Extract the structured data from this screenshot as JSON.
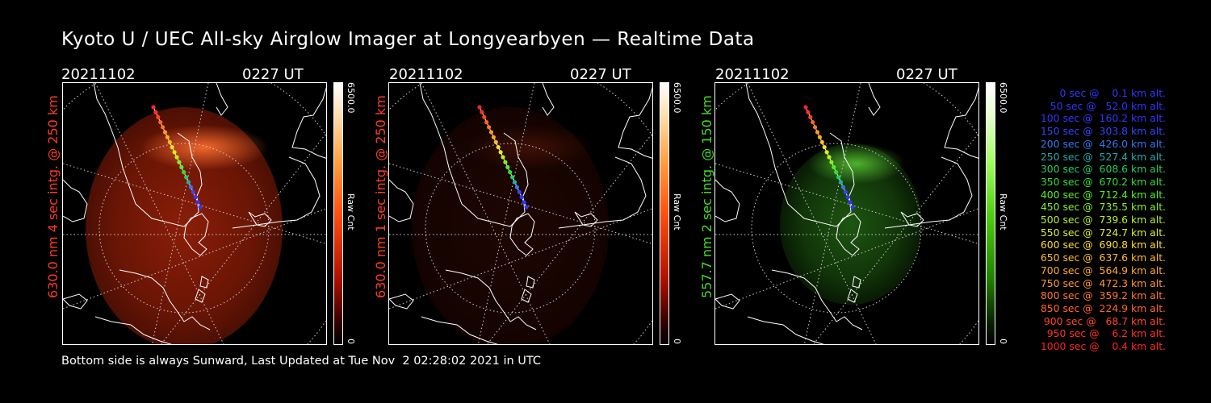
{
  "title": "Kyoto U / UEC All-sky Airglow Imager at Longyearbyen — Realtime Data",
  "footer": "Bottom side is always Sunward, Last Updated at Tue Nov  2 02:28:02 2021 in UTC",
  "colors": {
    "red": "#ff3b1e",
    "green": "#44dd22",
    "background": "#000000"
  },
  "panels": [
    {
      "date": "20211102",
      "time": "0227 UT",
      "side_label": "630.0 nm 4 sec intg. @ 250 km",
      "side_color": "#ff3b1e",
      "colorbar": {
        "max": "6500.0",
        "unit": "Raw Cnt",
        "min": "0",
        "scheme": "red"
      }
    },
    {
      "date": "20211102",
      "time": "0227 UT",
      "side_label": "630.0 nm 1 sec intg. @ 250 km",
      "side_color": "#ff3b1e",
      "colorbar": {
        "max": "6500.0",
        "unit": "Raw Cnt",
        "min": "0",
        "scheme": "red"
      }
    },
    {
      "date": "20211102",
      "time": "0227 UT",
      "side_label": "557.7 nm 2 sec intg. @ 150 km",
      "side_color": "#44dd22",
      "colorbar": {
        "max": "6500.0",
        "unit": "Raw Cnt",
        "min": "0",
        "scheme": "green"
      }
    }
  ],
  "legend": [
    {
      "text": "   0 sec @    0.1 km alt.",
      "color": "#3333ff"
    },
    {
      "text": "  50 sec @   52.0 km alt.",
      "color": "#3333ff"
    },
    {
      "text": " 100 sec @  160.2 km alt.",
      "color": "#3333ff"
    },
    {
      "text": " 150 sec @  303.8 km alt.",
      "color": "#3344ff"
    },
    {
      "text": " 200 sec @  426.0 km alt.",
      "color": "#3377ee"
    },
    {
      "text": " 250 sec @  527.4 km alt.",
      "color": "#22aaaa"
    },
    {
      "text": " 300 sec @  608.6 km alt.",
      "color": "#22cc66"
    },
    {
      "text": " 350 sec @  670.2 km alt.",
      "color": "#33dd33"
    },
    {
      "text": " 400 sec @  712.4 km alt.",
      "color": "#55ee22"
    },
    {
      "text": " 450 sec @  735.5 km alt.",
      "color": "#88ee22"
    },
    {
      "text": " 500 sec @  739.6 km alt.",
      "color": "#bbee22"
    },
    {
      "text": " 550 sec @  724.7 km alt.",
      "color": "#ddee22"
    },
    {
      "text": " 600 sec @  690.8 km alt.",
      "color": "#ffdd22"
    },
    {
      "text": " 650 sec @  637.6 km alt.",
      "color": "#ffbb22"
    },
    {
      "text": " 700 sec @  564.9 km alt.",
      "color": "#ffaa22"
    },
    {
      "text": " 750 sec @  472.3 km alt.",
      "color": "#ff9922"
    },
    {
      "text": " 800 sec @  359.2 km alt.",
      "color": "#ff7722"
    },
    {
      "text": " 850 sec @  224.9 km alt.",
      "color": "#ff6622"
    },
    {
      "text": " 900 sec @   68.7 km alt.",
      "color": "#ff4422"
    },
    {
      "text": " 950 sec @    6.2 km alt.",
      "color": "#ff3322"
    },
    {
      "text": "1000 sec @    0.4 km alt.",
      "color": "#ff2222"
    }
  ]
}
